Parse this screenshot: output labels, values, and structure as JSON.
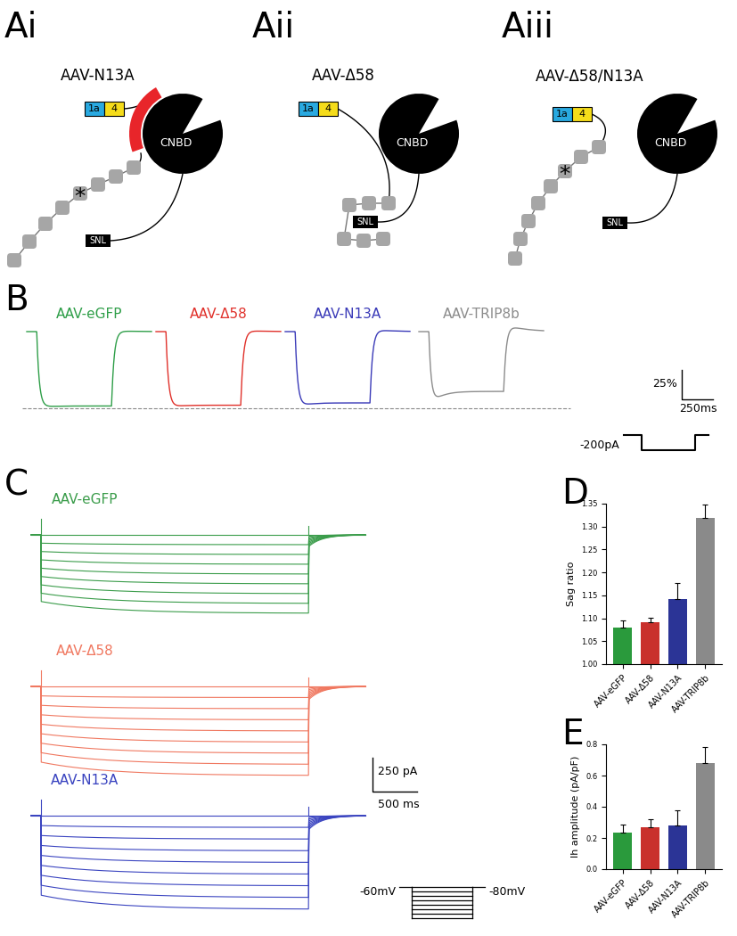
{
  "diagram": {
    "panels": [
      {
        "label": "Ai",
        "title": "AAV-N13A",
        "domains": [
          "1a",
          "4"
        ],
        "cnbd": "CNBD",
        "snl": "SNL",
        "mutation": "*"
      },
      {
        "label": "Aii",
        "title": "AAV-Δ58",
        "domains": [
          "1a",
          "4"
        ],
        "cnbd": "CNBD",
        "snl": "SNL"
      },
      {
        "label": "Aiii",
        "title": "AAV-Δ58/N13A",
        "domains": [
          "1a",
          "4"
        ],
        "cnbd": "CNBD",
        "snl": "SNL",
        "mutation": "*"
      }
    ]
  },
  "traces_B": {
    "panel": "B",
    "series": [
      {
        "name": "AAV-eGFP",
        "color": "#2e9e48"
      },
      {
        "name": "AAV-Δ58",
        "color": "#e0302a"
      },
      {
        "name": "AAV-N13A",
        "color": "#3a3ab8"
      },
      {
        "name": "AAV-TRIP8b",
        "color": "#8c8c8c"
      }
    ],
    "scale_y": "25%",
    "scale_x": "250ms",
    "stimulus": "-200pA"
  },
  "traces_C": {
    "panel": "C",
    "series": [
      {
        "name": "AAV-eGFP",
        "color": "#3a9c4a"
      },
      {
        "name": "AAV-Δ58",
        "color": "#f07860"
      },
      {
        "name": "AAV-N13A",
        "color": "#3a44c0"
      }
    ],
    "scale_y": "250 pA",
    "scale_x": "500 ms",
    "hold": "-60mV",
    "step": "-80mV"
  },
  "chart_data": [
    {
      "panel": "D",
      "type": "bar",
      "ylabel": "Sag ratio",
      "categories": [
        "AAV-eGFP",
        "AAV-Δ58",
        "AAV-N13A",
        "AAV-TRIP8b"
      ],
      "values": [
        1.08,
        1.092,
        1.142,
        1.318
      ],
      "errors": [
        0.015,
        0.01,
        0.035,
        0.03
      ],
      "colors": [
        "#2a9a3c",
        "#c9302c",
        "#2b3496",
        "#8a8a8a"
      ],
      "ylim": [
        1.0,
        1.35
      ],
      "yticks": [
        {
          "value": 1.0,
          "label": "1.00"
        },
        {
          "value": 1.05,
          "label": "1.05"
        },
        {
          "value": 1.1,
          "label": "1.10"
        },
        {
          "value": 1.15,
          "label": "1.15"
        },
        {
          "value": 1.2,
          "label": "1.20"
        },
        {
          "value": 1.25,
          "label": "1.25"
        },
        {
          "value": 1.3,
          "label": "1.30"
        },
        {
          "value": 1.35,
          "label": "1.35"
        }
      ]
    },
    {
      "panel": "E",
      "type": "bar",
      "ylabel": "Ih amplitude (pA/pF)",
      "categories": [
        "AAV-eGFP",
        "AAV-Δ58",
        "AAV-N13A",
        "AAV-TRIP8b"
      ],
      "values": [
        0.235,
        0.27,
        0.28,
        0.68
      ],
      "errors": [
        0.05,
        0.05,
        0.095,
        0.105
      ],
      "colors": [
        "#2a9a3c",
        "#c9302c",
        "#2b3496",
        "#8a8a8a"
      ],
      "ylim": [
        0.0,
        0.8
      ],
      "yticks": [
        0.0,
        0.2,
        0.4,
        0.6,
        0.8
      ]
    }
  ]
}
